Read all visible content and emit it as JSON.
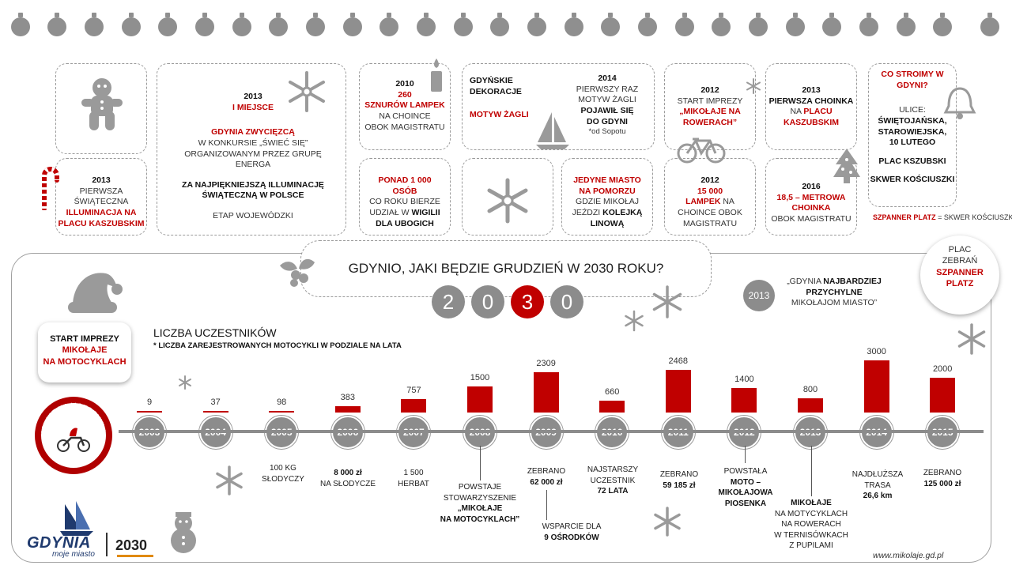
{
  "top_cards": {
    "c1": {
      "year": "2013",
      "l1": "PIERWSZA",
      "l2": "ŚWIĄTECZNA",
      "l3": "ILLUMINACJA NA",
      "l4": "PLACU KASZUBSKIM"
    },
    "c2": {
      "year": "2013",
      "rank": "I MIEJSCE",
      "l1": "GDYNIA ZWYCIĘZCĄ",
      "l2": "W KONKURSIE „ŚWIEĆ SIĘ”",
      "l3": "ORGANIZOWANYM PRZEZ GRUPĘ ENERGA",
      "l4": "ZA NAJPIĘKNIEJSZĄ ILLUMINACJĘ",
      "l5": "ŚWIĄTECZNĄ W POLSCE",
      "l6": "ETAP WOJEWÓDZKI"
    },
    "c3": {
      "year": "2010",
      "l1": "260",
      "l2": "SZNURÓW LAMPEK",
      "l3": "NA CHOINCE",
      "l4": "OBOK MAGISTRATU"
    },
    "c4": {
      "l1": "PONAD 1 000",
      "l2": "OSÓB",
      "l3": "CO ROKU BIERZE",
      "l4": "UDZIAŁ W",
      "l4b": "WIGILII",
      "l5": "DLA UBOGICH"
    },
    "c5": {
      "l1": "GDYŃSKIE DEKORACJE",
      "l2": "MOTYW ŻAGLI",
      "year": "2014",
      "l3": "PIERWSZY RAZ",
      "l4": "MOTYW ŻAGLI",
      "l5": "POJAWIŁ SIĘ",
      "l6": "DO GDYNI",
      "l7": "*od Sopotu"
    },
    "c6": {
      "l1": "JEDYNE MIASTO",
      "l2": "NA POMORZU",
      "l3": "GDZIE MIKOŁAJ",
      "l4": "JEŹDZI",
      "l4b": "KOLEJKĄ",
      "l5": "LINOWĄ"
    },
    "c7": {
      "year": "2012",
      "l1": "START IMPREZY",
      "l2": "„MIKOŁAJE NA",
      "l3": "ROWERACH”"
    },
    "c8": {
      "year": "2012",
      "l1": "15 000",
      "l2": "LAMPEK",
      "l2b": "NA",
      "l3": "CHOINCE OBOK",
      "l4": "MAGISTRATU"
    },
    "c9": {
      "year": "2013",
      "l1": "PIERWSZA CHOINKA",
      "l2": "NA",
      "l2b": "PLACU",
      "l3": "KASZUBSKIM"
    },
    "c10": {
      "year": "2016",
      "l1": "18,5 – METROWA",
      "l2": "CHOINKA",
      "l3": "OBOK MAGISTRATU"
    },
    "c11": {
      "l1": "CO STROIMY W",
      "l2": "GDYNI?",
      "l3": "ULICE:",
      "l4": "ŚWIĘTOJAŃSKA,",
      "l5": "STAROWIEJSKA,",
      "l6": "10 LUTEGO",
      "l7": "PLAC KSZUBSKI",
      "l8": "SKWER KOŚCIUSZKI"
    },
    "footnote": {
      "a": "SZPANNER PLATZ",
      "b": " = SKWER KOŚCIUSZKI"
    }
  },
  "headline": "GDYNIO, JAKI BĘDZIE GRUDZIEŃ W 2030 ROKU?",
  "digits": [
    "2",
    "0",
    "3",
    "0"
  ],
  "quote": {
    "year": "2013",
    "l1a": "„GDYNIA ",
    "l1b": "NAJBARDZIEJ",
    "l2": "PRZYCHYLNE",
    "l3": "MIKOŁAJOM MIASTO”"
  },
  "plac": {
    "l1": "PLAC",
    "l2": "ZEBRAŃ",
    "l3": "SZPANNER",
    "l4": "PLATZ"
  },
  "start_box": {
    "l1": "START IMPREZY",
    "l2": "MIKOŁAJE",
    "l3": "NA MOTOCYKLACH"
  },
  "badge_text": "MIKOŁAJE NA MOTOCYKLACH",
  "chart_data": {
    "type": "bar",
    "title": "LICZBA UCZESTNIKÓW",
    "subtitle": "* LICZBA ZAREJESTROWANYCH MOTOCYKLI W PODZIALE NA LATA",
    "categories": [
      "2003",
      "2004",
      "2005",
      "2006",
      "2007",
      "2008",
      "2009",
      "2010",
      "2011",
      "2012",
      "2013",
      "2014",
      "2015"
    ],
    "values": [
      9,
      37,
      98,
      383,
      757,
      1500,
      2309,
      660,
      2468,
      1400,
      800,
      3000,
      2000
    ],
    "ylim": [
      0,
      3000
    ]
  },
  "annotations": [
    {
      "year": "2005",
      "lines": [
        "100 KG",
        "SŁODYCZY"
      ]
    },
    {
      "year": "2006",
      "lines": [
        "8 000 zł",
        "NA SŁODYCZE"
      ]
    },
    {
      "year": "2007",
      "lines": [
        "1 500",
        "HERBAT"
      ]
    },
    {
      "year": "2008",
      "lines": [
        "POWSTAJE",
        "STOWARZYSZENIE",
        "„MIKOŁAJE",
        "NA MOTOCYKLACH”"
      ]
    },
    {
      "year": "2009",
      "lines": [
        "ZEBRANO",
        "62 000 zł"
      ]
    },
    {
      "year": "2009b",
      "lines": [
        "WSPARCIE DLA",
        "9 OŚRODKÓW"
      ]
    },
    {
      "year": "2010",
      "lines": [
        "NAJSTARSZY",
        "UCZESTNIK",
        "72 LATA"
      ]
    },
    {
      "year": "2011",
      "lines": [
        "ZEBRANO",
        "59 185 zł"
      ]
    },
    {
      "year": "2012",
      "lines": [
        "POWSTAŁA",
        "MOTO –",
        "MIKOŁAJOWA",
        "PIOSENKA"
      ]
    },
    {
      "year": "2013",
      "lines": [
        "MIKOŁAJE",
        "NA MOTYCYKLACH",
        "NA ROWERACH",
        "W TERNISÓWKACH",
        "Z PUPILAMI"
      ]
    },
    {
      "year": "2014",
      "lines": [
        "NAJDŁUŻSZA",
        "TRASA",
        "26,6 km"
      ]
    },
    {
      "year": "2015",
      "lines": [
        "ZEBRANO",
        "125 000 zł"
      ]
    }
  ],
  "logo": {
    "name": "GDYNIA",
    "tagline": "moje miasto",
    "year": "2030"
  },
  "url": "www.mikolaje.gd.pl",
  "colors": {
    "accent": "#c00000",
    "gray": "#8c8c8c"
  }
}
